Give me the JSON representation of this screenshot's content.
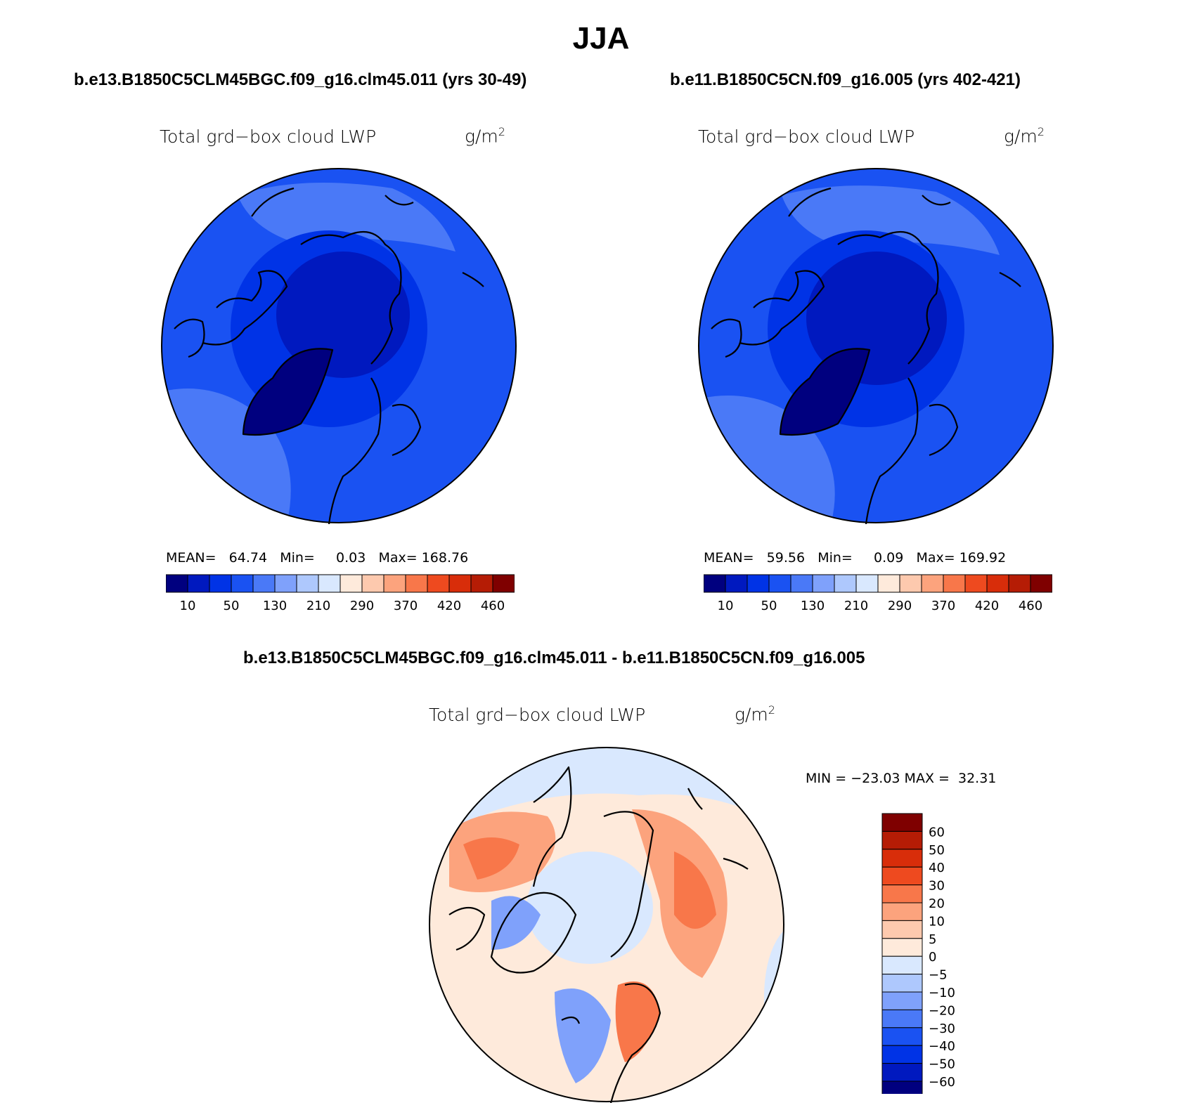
{
  "title": "JJA",
  "panels": [
    {
      "case": "b.e13.B1850C5CLM45BGC.f09_g16.clm45.011 (yrs 30-49)",
      "variable": "Total grd−box cloud LWP",
      "unit": "g/m",
      "unit_exp": "2",
      "mean_label": "MEAN=",
      "mean": "64.74",
      "min_label": "Min=",
      "min": "0.03",
      "max_label": "Max=",
      "max": "168.76"
    },
    {
      "case": "b.e11.B1850C5CN.f09_g16.005 (yrs 402-421)",
      "variable": "Total grd−box cloud LWP",
      "unit": "g/m",
      "unit_exp": "2",
      "mean_label": "MEAN=",
      "mean": "59.56",
      "min_label": "Min=",
      "min": "0.09",
      "max_label": "Max=",
      "max": "169.92"
    }
  ],
  "diff": {
    "case": "b.e13.B1850C5CLM45BGC.f09_g16.clm45.011 - b.e11.B1850C5CN.f09_g16.005",
    "variable": "Total grd−box cloud LWP",
    "unit": "g/m",
    "unit_exp": "2",
    "minmax_text": "MIN = −23.03 MAX =  32.31"
  },
  "colorbar_top": {
    "colors": [
      "#00007f",
      "#0019bf",
      "#0033e6",
      "#1a52f2",
      "#4a79f7",
      "#7fa1fb",
      "#aec8fd",
      "#d9e8fe",
      "#feeadb",
      "#fdc9ae",
      "#fca37d",
      "#f8774a",
      "#ee4a1f",
      "#d82d0a",
      "#b51c05",
      "#7f0000"
    ],
    "labels": [
      "10",
      "50",
      "130",
      "210",
      "290",
      "370",
      "420",
      "460"
    ]
  },
  "colorbar_diff": {
    "colors_top_to_bottom": [
      "#7f0000",
      "#b51c05",
      "#d82d0a",
      "#ee4a1f",
      "#f8774a",
      "#fca37d",
      "#fdc9ae",
      "#feeadb",
      "#d9e8fe",
      "#aec8fd",
      "#7fa1fb",
      "#4a79f7",
      "#1a52f2",
      "#0033e6",
      "#0019bf",
      "#00007f"
    ],
    "labels": [
      "60",
      "50",
      "40",
      "30",
      "20",
      "10",
      "5",
      "0",
      "−5",
      "−10",
      "−20",
      "−30",
      "−40",
      "−50",
      "−60"
    ]
  },
  "map_colors": {
    "ocean_mid": "#1a52f2",
    "ocean_light": "#4a79f7",
    "land_dark": "#0033e6",
    "ice_core": "#0019bf",
    "greenland": "#00007f",
    "diff_base": "#feeadb",
    "diff_warm": "#fca37d",
    "diff_hot": "#f8774a",
    "diff_cool": "#d9e8fe",
    "diff_cold": "#7fa1fb"
  }
}
